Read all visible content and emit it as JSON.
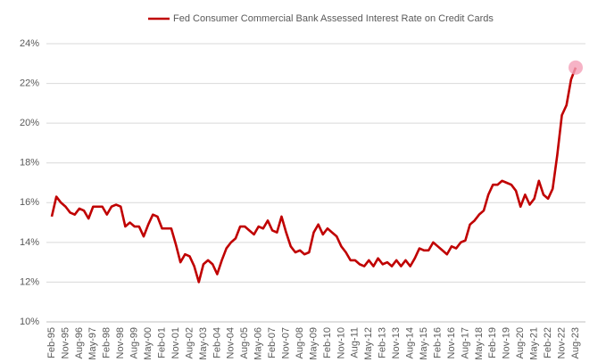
{
  "chart_data": {
    "type": "line",
    "categories": [
      "Feb-95",
      null,
      null,
      "Nov-95",
      null,
      null,
      "Aug-96",
      null,
      null,
      "May-97",
      null,
      null,
      "Feb-98",
      null,
      null,
      "Nov-98",
      null,
      null,
      "Aug-99",
      null,
      null,
      "May-00",
      null,
      null,
      "Feb-01",
      null,
      null,
      "Nov-01",
      null,
      null,
      "Aug-02",
      null,
      null,
      "May-03",
      null,
      null,
      "Feb-04",
      null,
      null,
      "Nov-04",
      null,
      null,
      "Aug-05",
      null,
      null,
      "May-06",
      null,
      null,
      "Feb-07",
      null,
      null,
      "Nov-07",
      null,
      null,
      "Aug-08",
      null,
      null,
      "May-09",
      null,
      null,
      "Feb-10",
      null,
      null,
      "Nov-10",
      null,
      null,
      "Aug-11",
      null,
      null,
      "May-12",
      null,
      null,
      "Feb-13",
      null,
      null,
      "Nov-13",
      null,
      null,
      "Aug-14",
      null,
      null,
      "May-15",
      null,
      null,
      "Feb-16",
      null,
      null,
      "Nov-16",
      null,
      null,
      "Aug-17",
      null,
      null,
      "May-18",
      null,
      null,
      "Feb-19",
      null,
      null,
      "Nov-19",
      null,
      null,
      "Aug-20",
      null,
      null,
      "May-21",
      null,
      null,
      "Feb-22",
      null,
      null,
      "Nov-22",
      null,
      null,
      "Aug-23"
    ],
    "series": [
      {
        "name": "Fed Consumer Commercial Bank Assessed Interest Rate on Credit Cards",
        "color": "#c00000",
        "values": [
          15.3,
          16.3,
          16.0,
          15.8,
          15.5,
          15.4,
          15.7,
          15.6,
          15.2,
          15.8,
          15.8,
          15.8,
          15.4,
          15.8,
          15.9,
          15.8,
          14.8,
          15.0,
          14.8,
          14.8,
          14.3,
          14.9,
          15.4,
          15.3,
          14.7,
          14.7,
          14.7,
          13.9,
          13.0,
          13.4,
          13.3,
          12.8,
          12.0,
          12.9,
          13.1,
          12.9,
          12.4,
          13.1,
          13.7,
          14.0,
          14.2,
          14.8,
          14.8,
          14.6,
          14.4,
          14.8,
          14.7,
          15.1,
          14.6,
          14.5,
          15.3,
          14.5,
          13.8,
          13.5,
          13.6,
          13.4,
          13.5,
          14.5,
          14.9,
          14.4,
          14.7,
          14.5,
          14.3,
          13.8,
          13.5,
          13.1,
          13.1,
          12.9,
          12.8,
          13.1,
          12.8,
          13.2,
          12.9,
          13.0,
          12.8,
          13.1,
          12.8,
          13.1,
          12.8,
          13.2,
          13.7,
          13.6,
          13.6,
          14.0,
          13.8,
          13.6,
          13.4,
          13.8,
          13.7,
          14.0,
          14.1,
          14.9,
          15.1,
          15.4,
          15.6,
          16.4,
          16.9,
          16.9,
          17.1,
          17.0,
          16.9,
          16.6,
          15.8,
          16.4,
          15.9,
          16.2,
          17.1,
          16.4,
          16.2,
          16.7,
          18.4,
          20.4,
          20.9,
          22.2,
          22.8
        ]
      }
    ],
    "ylim": [
      10,
      24
    ],
    "yticks": [
      {
        "value": 10,
        "label": "10%"
      },
      {
        "value": 12,
        "label": "12%"
      },
      {
        "value": 14,
        "label": "14%"
      },
      {
        "value": 16,
        "label": "16%"
      },
      {
        "value": 18,
        "label": "18%"
      },
      {
        "value": 20,
        "label": "20%"
      },
      {
        "value": 22,
        "label": "22%"
      },
      {
        "value": 24,
        "label": "24%"
      }
    ],
    "grid": true,
    "legend": "top"
  }
}
